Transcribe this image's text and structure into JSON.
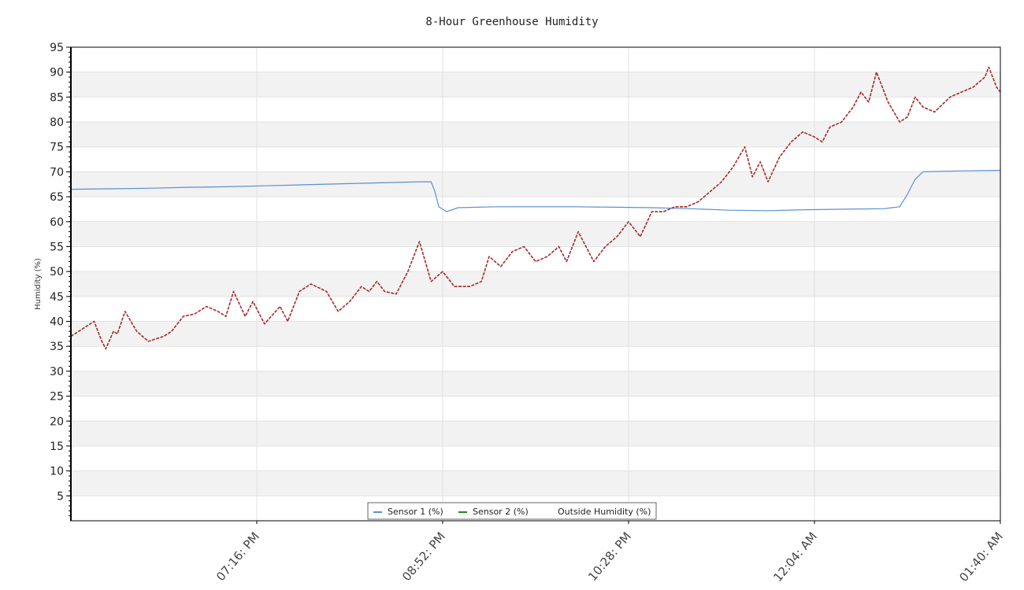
{
  "chart_data": {
    "type": "line",
    "title": "8-Hour Greenhouse Humidity",
    "xlabel": "",
    "ylabel": "Humidity (%)",
    "ylim": [
      0,
      95
    ],
    "yticks": [
      5,
      10,
      15,
      20,
      25,
      30,
      35,
      40,
      45,
      50,
      55,
      60,
      65,
      70,
      75,
      80,
      85,
      90,
      95
    ],
    "xlim": [
      0,
      480
    ],
    "xticks": [
      {
        "x": 96,
        "label": "07:16: PM"
      },
      {
        "x": 192,
        "label": "08:52: PM"
      },
      {
        "x": 288,
        "label": "10:28: PM"
      },
      {
        "x": 384,
        "label": "12:04: AM"
      },
      {
        "x": 480,
        "label": "01:40: AM"
      }
    ],
    "grid": true,
    "legend": {
      "position": "bottom-center"
    },
    "series": [
      {
        "name": "Sensor 1 (%)",
        "color": "#5a8fd6",
        "style": "solid",
        "x": [
          0,
          20,
          40,
          60,
          80,
          100,
          120,
          140,
          160,
          180,
          186,
          188,
          190,
          194,
          200,
          220,
          240,
          260,
          280,
          300,
          320,
          340,
          360,
          380,
          400,
          420,
          424,
          428,
          432,
          436,
          440,
          460,
          480
        ],
        "y": [
          66.5,
          66.6,
          66.7,
          66.9,
          67.0,
          67.2,
          67.4,
          67.6,
          67.8,
          68.0,
          68.0,
          66.0,
          63.0,
          62.0,
          62.8,
          63.0,
          63.0,
          63.0,
          62.9,
          62.8,
          62.6,
          62.3,
          62.2,
          62.4,
          62.5,
          62.6,
          62.8,
          63.0,
          65.5,
          68.5,
          70.0,
          70.2,
          70.3
        ]
      },
      {
        "name": "Sensor 2 (%)",
        "color": "#228b22",
        "style": "solid",
        "x": [],
        "y": []
      },
      {
        "name": "Outside Humidity (%)",
        "color": "#a52a2a",
        "style": "dashed",
        "x": [
          0,
          6,
          12,
          14,
          16,
          18,
          22,
          24,
          28,
          34,
          40,
          48,
          52,
          58,
          64,
          70,
          76,
          80,
          84,
          90,
          94,
          100,
          108,
          112,
          118,
          124,
          132,
          138,
          144,
          150,
          154,
          158,
          162,
          168,
          174,
          180,
          186,
          192,
          198,
          206,
          212,
          216,
          222,
          228,
          234,
          240,
          246,
          252,
          256,
          262,
          270,
          276,
          282,
          288,
          294,
          300,
          306,
          312,
          318,
          324,
          330,
          336,
          342,
          348,
          352,
          356,
          360,
          366,
          372,
          378,
          384,
          388,
          392,
          398,
          404,
          408,
          412,
          416,
          422,
          428,
          432,
          436,
          440,
          446,
          454,
          460,
          466,
          472,
          474,
          478,
          480
        ],
        "y": [
          37,
          38.5,
          40,
          38,
          36,
          34.5,
          38,
          37.5,
          42,
          38,
          36,
          37,
          38,
          41,
          41.5,
          43,
          42,
          41,
          46,
          41,
          44,
          39.5,
          43,
          40,
          46,
          47.5,
          46,
          42,
          44,
          47,
          46,
          48,
          46,
          45.5,
          50,
          56,
          48,
          50,
          47,
          47,
          48,
          53,
          51,
          54,
          55,
          52,
          53,
          55,
          52,
          58,
          52,
          55,
          57,
          60,
          57,
          62,
          62,
          63,
          63,
          64,
          66,
          68,
          71,
          75,
          69,
          72,
          68,
          73,
          76,
          78,
          77,
          76,
          79,
          80,
          83,
          86,
          84,
          90,
          84,
          80,
          81,
          85,
          83,
          82,
          85,
          86,
          87,
          89,
          91,
          87,
          86
        ]
      }
    ]
  }
}
